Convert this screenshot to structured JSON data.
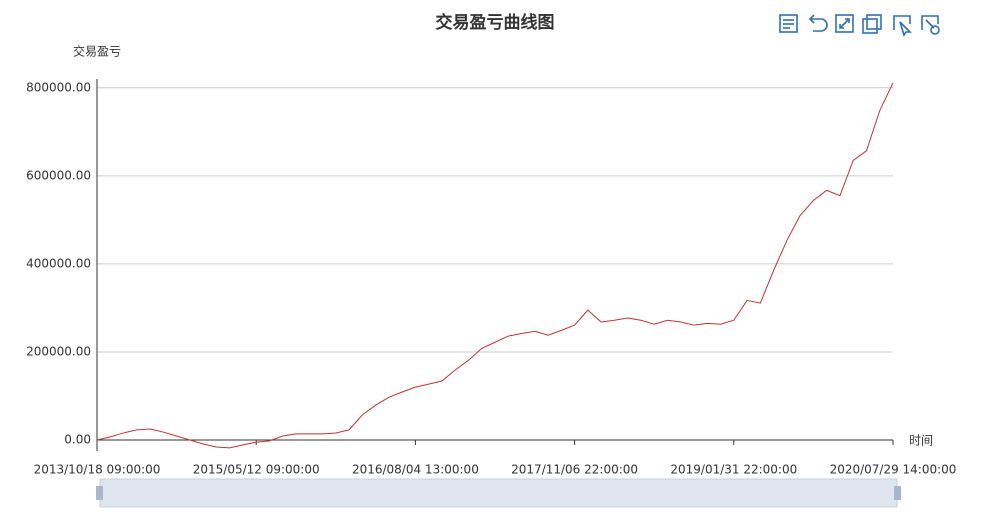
{
  "chart_data": {
    "type": "line",
    "title": "交易盈亏曲线图",
    "y_axis_label": "交易盈亏",
    "x_axis_label": "时间",
    "categories": [
      "2013/10/18 09:00:00",
      null,
      null,
      null,
      null,
      null,
      null,
      null,
      null,
      null,
      null,
      null,
      "2015/05/12 09:00:00",
      null,
      null,
      null,
      null,
      null,
      null,
      null,
      null,
      null,
      null,
      null,
      "2016/08/04 13:00:00",
      null,
      null,
      null,
      null,
      null,
      null,
      null,
      null,
      null,
      null,
      null,
      "2017/11/06 22:00:00",
      null,
      null,
      null,
      null,
      null,
      null,
      null,
      null,
      null,
      null,
      null,
      "2019/01/31 22:00:00",
      null,
      null,
      null,
      null,
      null,
      null,
      null,
      null,
      null,
      null,
      null,
      "2020/07/29 14:00:00"
    ],
    "series": [
      {
        "name": "交易盈亏",
        "color": "#c23531",
        "values": [
          0,
          7000,
          16000,
          23000,
          25000,
          18000,
          9000,
          0,
          -9000,
          -16000,
          -18000,
          -11000,
          -5000,
          -2000,
          9000,
          14000,
          14000,
          14000,
          16000,
          23000,
          57000,
          79000,
          97000,
          109000,
          120000,
          127000,
          134000,
          159000,
          181000,
          208000,
          222000,
          236000,
          242000,
          247000,
          238000,
          249000,
          261000,
          295000,
          268000,
          272000,
          277000,
          272000,
          263000,
          272000,
          268000,
          261000,
          265000,
          263000,
          272000,
          317000,
          311000,
          385000,
          453000,
          510000,
          544000,
          567000,
          555000,
          635000,
          657000,
          748000,
          811000
        ]
      }
    ],
    "ylim": [
      -25000,
      820000
    ],
    "yticks": [
      {
        "value": 0,
        "label": "0.00"
      },
      {
        "value": 200000,
        "label": "200000.00"
      },
      {
        "value": 400000,
        "label": "400000.00"
      },
      {
        "value": 600000,
        "label": "600000.00"
      },
      {
        "value": 800000,
        "label": "800000.00"
      }
    ],
    "grid": true
  }
}
